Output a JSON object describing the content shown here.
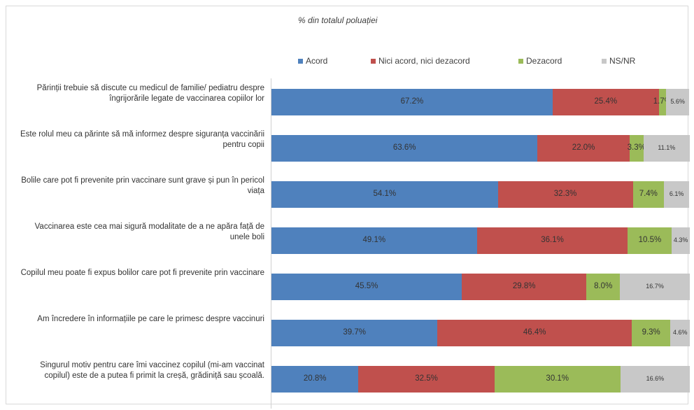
{
  "chart_data": {
    "type": "bar",
    "orientation": "horizontal",
    "stacked": true,
    "title": "% din totalul poluației",
    "legend_position": "top",
    "xlim": [
      0,
      100
    ],
    "categories": [
      "Părinții trebuie să discute cu medicul de familie/ pediatru despre îngrijorările legate de vaccinarea copiilor lor",
      "Este rolul meu ca părinte să mă informez despre siguranța vaccinării pentru copii",
      "Bolile care pot fi prevenite prin vaccinare sunt grave și pun în pericol viața",
      "Vaccinarea este cea mai sigură modalitate de a ne apăra față de unele boli",
      "Copilul meu poate fi expus bolilor care pot fi prevenite prin vaccinare",
      "Am încredere în informațiile pe care le primesc despre vaccinuri",
      "Singurul motiv pentru care îmi vaccinez copilul (mi-am vaccinat copilul) este de a putea fi primit la creșă, grădiniță sau școală."
    ],
    "series": [
      {
        "name": "Acord",
        "color": "#4f81bd",
        "values": [
          67.2,
          63.6,
          54.1,
          49.1,
          45.5,
          39.7,
          20.8
        ]
      },
      {
        "name": "Nici acord, nici dezacord",
        "color": "#c0504d",
        "values": [
          25.4,
          22.0,
          32.3,
          36.1,
          29.8,
          46.4,
          32.5
        ]
      },
      {
        "name": "Dezacord",
        "color": "#9bbb59",
        "values": [
          1.7,
          3.3,
          7.4,
          10.5,
          8.0,
          9.3,
          30.1
        ]
      },
      {
        "name": "NS/NR",
        "color": "#c8c8c8",
        "values": [
          5.6,
          11.1,
          6.1,
          4.3,
          16.7,
          4.6,
          16.6
        ]
      }
    ],
    "value_labels": [
      [
        "67.2%",
        "25.4%",
        "1.7%",
        "5.6%"
      ],
      [
        "63.6%",
        "22.0%",
        "3.3%",
        "11.1%"
      ],
      [
        "54.1%",
        "32.3%",
        "7.4%",
        "6.1%"
      ],
      [
        "49.1%",
        "36.1%",
        "10.5%",
        "4.3%"
      ],
      [
        "45.5%",
        "29.8%",
        "8.0%",
        "16.7%"
      ],
      [
        "39.7%",
        "46.4%",
        "9.3%",
        "4.6%"
      ],
      [
        "20.8%",
        "32.5%",
        "30.1%",
        "16.6%"
      ]
    ]
  }
}
